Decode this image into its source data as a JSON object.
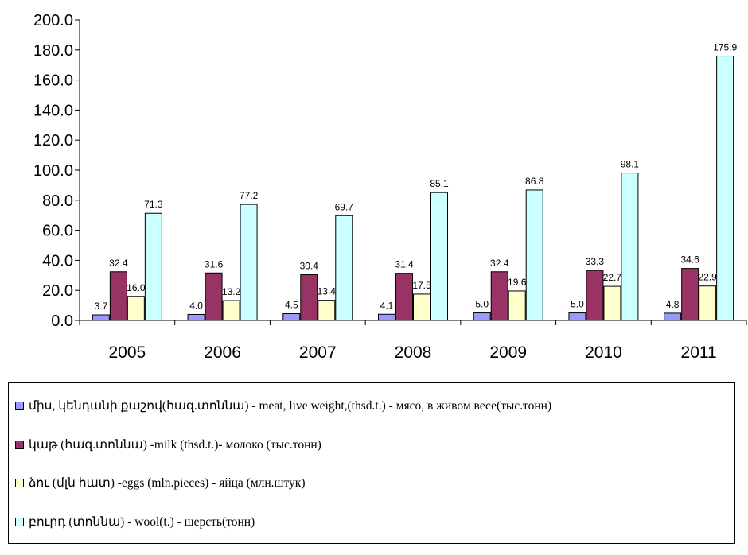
{
  "colors": {
    "meat": "#9999ff",
    "milk": "#993366",
    "eggs": "#ffffcc",
    "wool": "#ccffff"
  },
  "legend": [
    {
      "key": "meat",
      "text": "միս, կենդանի քաշով(հազ.տոննա) - meat, live weight,(thsd.t.) - мясо, в живом весе(тыс.тонн)"
    },
    {
      "key": "milk",
      "text": "կաթ (հազ.տոննա) -milk (thsd.t.)- молоко (тыс.тонн)"
    },
    {
      "key": "eggs",
      "text": "ձու (մլն հատ) -eggs (mln.pieces) - яйца (млн.штук)"
    },
    {
      "key": "wool",
      "text": "բուրդ (տոննա) - wool(t.) - шерсть(тонн)"
    }
  ],
  "chart_data": {
    "type": "bar",
    "categories": [
      "2005",
      "2006",
      "2007",
      "2008",
      "2009",
      "2010",
      "2011"
    ],
    "series": [
      {
        "key": "meat",
        "name": "միս, կենդանի քաշով(հազ.տոննա) - meat, live weight,(thsd.t.) - мясо, в живом весе(тыс.тонн)",
        "values": [
          3.7,
          4.0,
          4.5,
          4.1,
          5.0,
          5.0,
          4.8
        ],
        "labels": [
          "3.7",
          "4.0",
          "4.5",
          "4.1",
          "5.0",
          "5.0",
          "4.8"
        ]
      },
      {
        "key": "milk",
        "name": "կաթ (հազ.տոննա) -milk (thsd.t.)- молоко (тыс.тонн)",
        "values": [
          32.4,
          31.6,
          30.4,
          31.4,
          32.4,
          33.3,
          34.6
        ],
        "labels": [
          "32.4",
          "31.6",
          "30.4",
          "31.4",
          "32.4",
          "33.3",
          "34.6"
        ]
      },
      {
        "key": "eggs",
        "name": "ձու (մլն հատ) -eggs (mln.pieces) - яйца (млн.штук)",
        "values": [
          16.0,
          13.2,
          13.4,
          17.5,
          19.6,
          22.7,
          22.9
        ],
        "labels": [
          "16.0",
          "13.2",
          "13.4",
          "17.5",
          "19.6",
          "22.7",
          "22.9"
        ]
      },
      {
        "key": "wool",
        "name": "բուրդ (տոննա) - wool(t.) - шерсть(тонн)",
        "values": [
          71.3,
          77.2,
          69.7,
          85.1,
          86.8,
          98.1,
          175.9
        ],
        "labels": [
          "71.3",
          "77.2",
          "69.7",
          "85.1",
          "86.8",
          "98.1",
          "175.9"
        ]
      }
    ],
    "ylim": [
      0,
      200
    ],
    "yticks": [
      "0.0",
      "20.0",
      "40.0",
      "60.0",
      "80.0",
      "100.0",
      "120.0",
      "140.0",
      "160.0",
      "180.0",
      "200.0"
    ],
    "grid": false,
    "legend_position": "bottom"
  }
}
